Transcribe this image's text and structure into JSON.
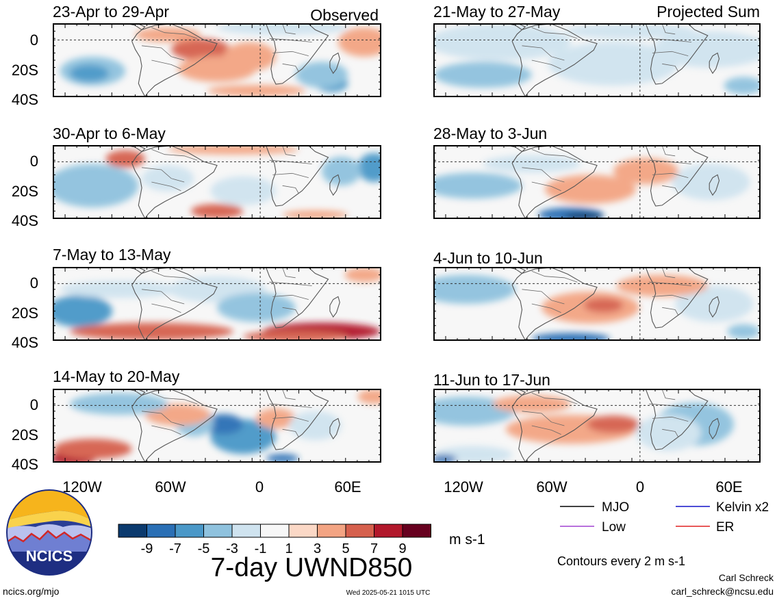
{
  "left_column_label": "Observed",
  "right_column_label": "Projected Sum",
  "panels": [
    {
      "title": "23-Apr to 29-Apr"
    },
    {
      "title": "30-Apr to 6-May"
    },
    {
      "title": "7-May to 13-May"
    },
    {
      "title": "14-May to 20-May"
    },
    {
      "title": "21-May to 27-May"
    },
    {
      "title": "28-May to 3-Jun"
    },
    {
      "title": "4-Jun to 10-Jun"
    },
    {
      "title": "11-Jun to 17-Jun"
    }
  ],
  "lat_ticks": [
    "0",
    "20S",
    "40S"
  ],
  "lon_ticks": [
    "120W",
    "60W",
    "0",
    "60E"
  ],
  "legend": {
    "items": [
      {
        "label": "MJO",
        "color": "#000000"
      },
      {
        "label": "Kelvin x2",
        "color": "#1010c8"
      },
      {
        "label": "Low",
        "color": "#a040d0"
      },
      {
        "label": "ER",
        "color": "#e02020"
      }
    ]
  },
  "colorbar": {
    "colors": [
      "#0b3a6e",
      "#2a6fb5",
      "#4a98c8",
      "#8fc2de",
      "#cfe3ef",
      "#f7f7f7",
      "#fbd8c6",
      "#f3a483",
      "#d6604d",
      "#b2182b",
      "#67001f"
    ],
    "tick_labels": [
      "-9",
      "-7",
      "-5",
      "-3",
      "-1",
      "1",
      "3",
      "5",
      "7",
      "9"
    ],
    "units": "m s-1"
  },
  "main_title": "7-day UWND850",
  "contours_note": "Contours every 2 m s-1",
  "footer": {
    "left_url": "ncics.org/mjo",
    "timestamp": "Wed 2025-05-21 1015 UTC",
    "author": "Carl Schreck",
    "email": "carl_schreck@ncsu.edu"
  },
  "logo": {
    "text": "NCICS"
  }
}
